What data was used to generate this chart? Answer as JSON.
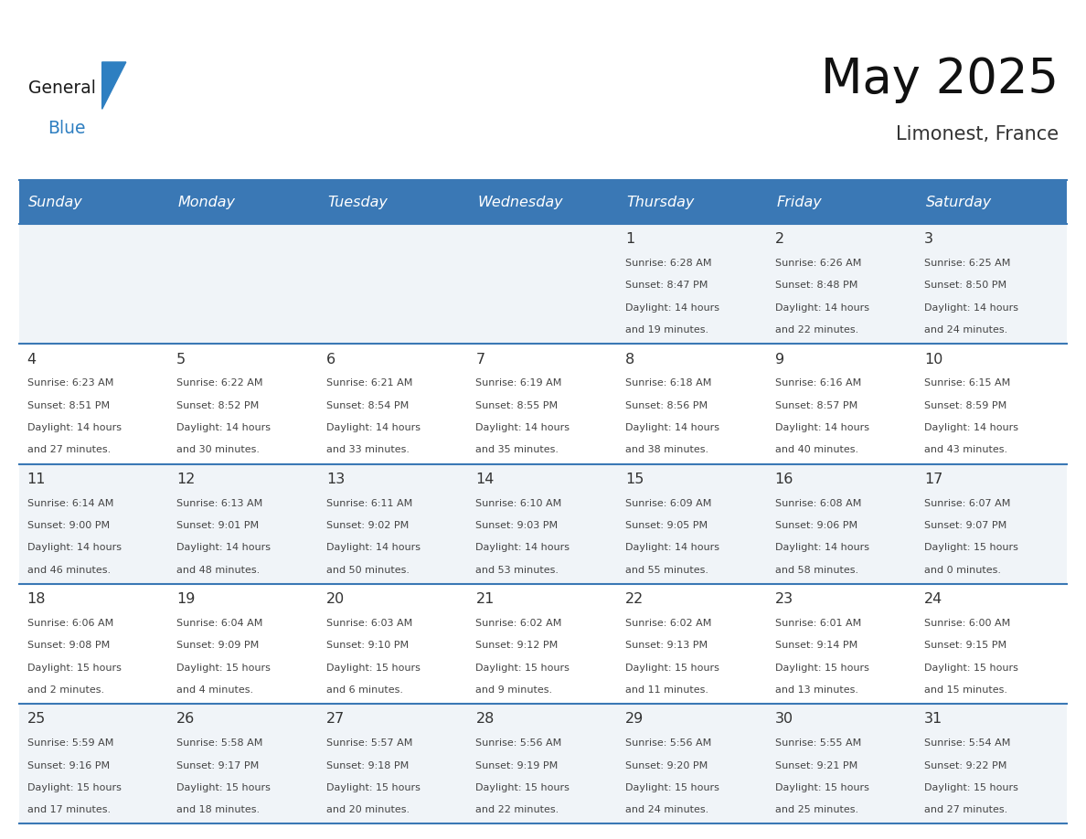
{
  "title": "May 2025",
  "subtitle": "Limonest, France",
  "header_bg": "#3a78b5",
  "header_text_color": "#ffffff",
  "days_of_week": [
    "Sunday",
    "Monday",
    "Tuesday",
    "Wednesday",
    "Thursday",
    "Friday",
    "Saturday"
  ],
  "row_bg_odd": "#f0f4f8",
  "row_bg_even": "#ffffff",
  "cell_text_color": "#444444",
  "day_num_color": "#333333",
  "info_color": "#444444",
  "grid_line_color": "#3a78b5",
  "logo_general_color": "#1a1a1a",
  "logo_blue_color": "#2e7fc1",
  "calendar_data": [
    [
      {
        "day": "",
        "sunrise": "",
        "sunset": "",
        "daylight_hrs": "",
        "daylight_min": ""
      },
      {
        "day": "",
        "sunrise": "",
        "sunset": "",
        "daylight_hrs": "",
        "daylight_min": ""
      },
      {
        "day": "",
        "sunrise": "",
        "sunset": "",
        "daylight_hrs": "",
        "daylight_min": ""
      },
      {
        "day": "",
        "sunrise": "",
        "sunset": "",
        "daylight_hrs": "",
        "daylight_min": ""
      },
      {
        "day": "1",
        "sunrise": "6:28 AM",
        "sunset": "8:47 PM",
        "daylight_hrs": "14",
        "daylight_min": "19"
      },
      {
        "day": "2",
        "sunrise": "6:26 AM",
        "sunset": "8:48 PM",
        "daylight_hrs": "14",
        "daylight_min": "22"
      },
      {
        "day": "3",
        "sunrise": "6:25 AM",
        "sunset": "8:50 PM",
        "daylight_hrs": "14",
        "daylight_min": "24"
      }
    ],
    [
      {
        "day": "4",
        "sunrise": "6:23 AM",
        "sunset": "8:51 PM",
        "daylight_hrs": "14",
        "daylight_min": "27"
      },
      {
        "day": "5",
        "sunrise": "6:22 AM",
        "sunset": "8:52 PM",
        "daylight_hrs": "14",
        "daylight_min": "30"
      },
      {
        "day": "6",
        "sunrise": "6:21 AM",
        "sunset": "8:54 PM",
        "daylight_hrs": "14",
        "daylight_min": "33"
      },
      {
        "day": "7",
        "sunrise": "6:19 AM",
        "sunset": "8:55 PM",
        "daylight_hrs": "14",
        "daylight_min": "35"
      },
      {
        "day": "8",
        "sunrise": "6:18 AM",
        "sunset": "8:56 PM",
        "daylight_hrs": "14",
        "daylight_min": "38"
      },
      {
        "day": "9",
        "sunrise": "6:16 AM",
        "sunset": "8:57 PM",
        "daylight_hrs": "14",
        "daylight_min": "40"
      },
      {
        "day": "10",
        "sunrise": "6:15 AM",
        "sunset": "8:59 PM",
        "daylight_hrs": "14",
        "daylight_min": "43"
      }
    ],
    [
      {
        "day": "11",
        "sunrise": "6:14 AM",
        "sunset": "9:00 PM",
        "daylight_hrs": "14",
        "daylight_min": "46"
      },
      {
        "day": "12",
        "sunrise": "6:13 AM",
        "sunset": "9:01 PM",
        "daylight_hrs": "14",
        "daylight_min": "48"
      },
      {
        "day": "13",
        "sunrise": "6:11 AM",
        "sunset": "9:02 PM",
        "daylight_hrs": "14",
        "daylight_min": "50"
      },
      {
        "day": "14",
        "sunrise": "6:10 AM",
        "sunset": "9:03 PM",
        "daylight_hrs": "14",
        "daylight_min": "53"
      },
      {
        "day": "15",
        "sunrise": "6:09 AM",
        "sunset": "9:05 PM",
        "daylight_hrs": "14",
        "daylight_min": "55"
      },
      {
        "day": "16",
        "sunrise": "6:08 AM",
        "sunset": "9:06 PM",
        "daylight_hrs": "14",
        "daylight_min": "58"
      },
      {
        "day": "17",
        "sunrise": "6:07 AM",
        "sunset": "9:07 PM",
        "daylight_hrs": "15",
        "daylight_min": "0"
      }
    ],
    [
      {
        "day": "18",
        "sunrise": "6:06 AM",
        "sunset": "9:08 PM",
        "daylight_hrs": "15",
        "daylight_min": "2"
      },
      {
        "day": "19",
        "sunrise": "6:04 AM",
        "sunset": "9:09 PM",
        "daylight_hrs": "15",
        "daylight_min": "4"
      },
      {
        "day": "20",
        "sunrise": "6:03 AM",
        "sunset": "9:10 PM",
        "daylight_hrs": "15",
        "daylight_min": "6"
      },
      {
        "day": "21",
        "sunrise": "6:02 AM",
        "sunset": "9:12 PM",
        "daylight_hrs": "15",
        "daylight_min": "9"
      },
      {
        "day": "22",
        "sunrise": "6:02 AM",
        "sunset": "9:13 PM",
        "daylight_hrs": "15",
        "daylight_min": "11"
      },
      {
        "day": "23",
        "sunrise": "6:01 AM",
        "sunset": "9:14 PM",
        "daylight_hrs": "15",
        "daylight_min": "13"
      },
      {
        "day": "24",
        "sunrise": "6:00 AM",
        "sunset": "9:15 PM",
        "daylight_hrs": "15",
        "daylight_min": "15"
      }
    ],
    [
      {
        "day": "25",
        "sunrise": "5:59 AM",
        "sunset": "9:16 PM",
        "daylight_hrs": "15",
        "daylight_min": "17"
      },
      {
        "day": "26",
        "sunrise": "5:58 AM",
        "sunset": "9:17 PM",
        "daylight_hrs": "15",
        "daylight_min": "18"
      },
      {
        "day": "27",
        "sunrise": "5:57 AM",
        "sunset": "9:18 PM",
        "daylight_hrs": "15",
        "daylight_min": "20"
      },
      {
        "day": "28",
        "sunrise": "5:56 AM",
        "sunset": "9:19 PM",
        "daylight_hrs": "15",
        "daylight_min": "22"
      },
      {
        "day": "29",
        "sunrise": "5:56 AM",
        "sunset": "9:20 PM",
        "daylight_hrs": "15",
        "daylight_min": "24"
      },
      {
        "day": "30",
        "sunrise": "5:55 AM",
        "sunset": "9:21 PM",
        "daylight_hrs": "15",
        "daylight_min": "25"
      },
      {
        "day": "31",
        "sunrise": "5:54 AM",
        "sunset": "9:22 PM",
        "daylight_hrs": "15",
        "daylight_min": "27"
      }
    ]
  ]
}
